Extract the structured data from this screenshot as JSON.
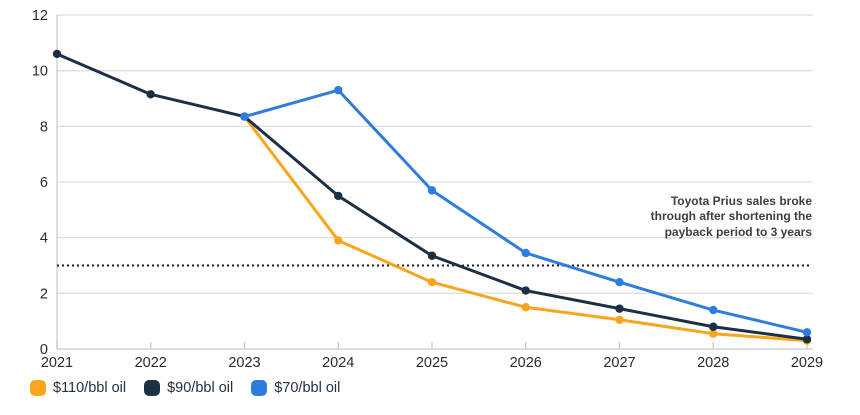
{
  "chart_data": {
    "type": "line",
    "title": "",
    "xlabel": "",
    "ylabel": "",
    "categories": [
      "2021",
      "2022",
      "2023",
      "2024",
      "2025",
      "2026",
      "2027",
      "2028",
      "2029"
    ],
    "series": [
      {
        "name": "$110/bbl oil",
        "color": "#F9A51E",
        "values": [
          null,
          null,
          8.35,
          3.9,
          2.4,
          1.5,
          1.05,
          0.55,
          0.3
        ]
      },
      {
        "name": "$90/bbl oil",
        "color": "#1B3045",
        "values": [
          10.6,
          9.15,
          8.35,
          5.5,
          3.35,
          2.1,
          1.45,
          0.8,
          0.35
        ]
      },
      {
        "name": "$70/bbl oil",
        "color": "#2E7CDB",
        "values": [
          null,
          null,
          8.35,
          9.3,
          5.7,
          3.45,
          2.4,
          1.4,
          0.6
        ]
      }
    ],
    "ylim": [
      0,
      12
    ],
    "yticks": [
      0,
      2,
      4,
      6,
      8,
      10,
      12
    ],
    "grid": "horizontal",
    "legend_position": "bottom-left",
    "reference_line": {
      "value": 3,
      "style": "dotted",
      "color": "#1c1c1c"
    },
    "annotation": {
      "text": "Toyota Prius sales broke through after shortening the payback period to 3 years"
    },
    "colors": {
      "gridline": "#dedede",
      "axis_line": "#cccccc",
      "tick_mark": "#c9c9c9",
      "tick_label": "#2b2b2b"
    }
  }
}
